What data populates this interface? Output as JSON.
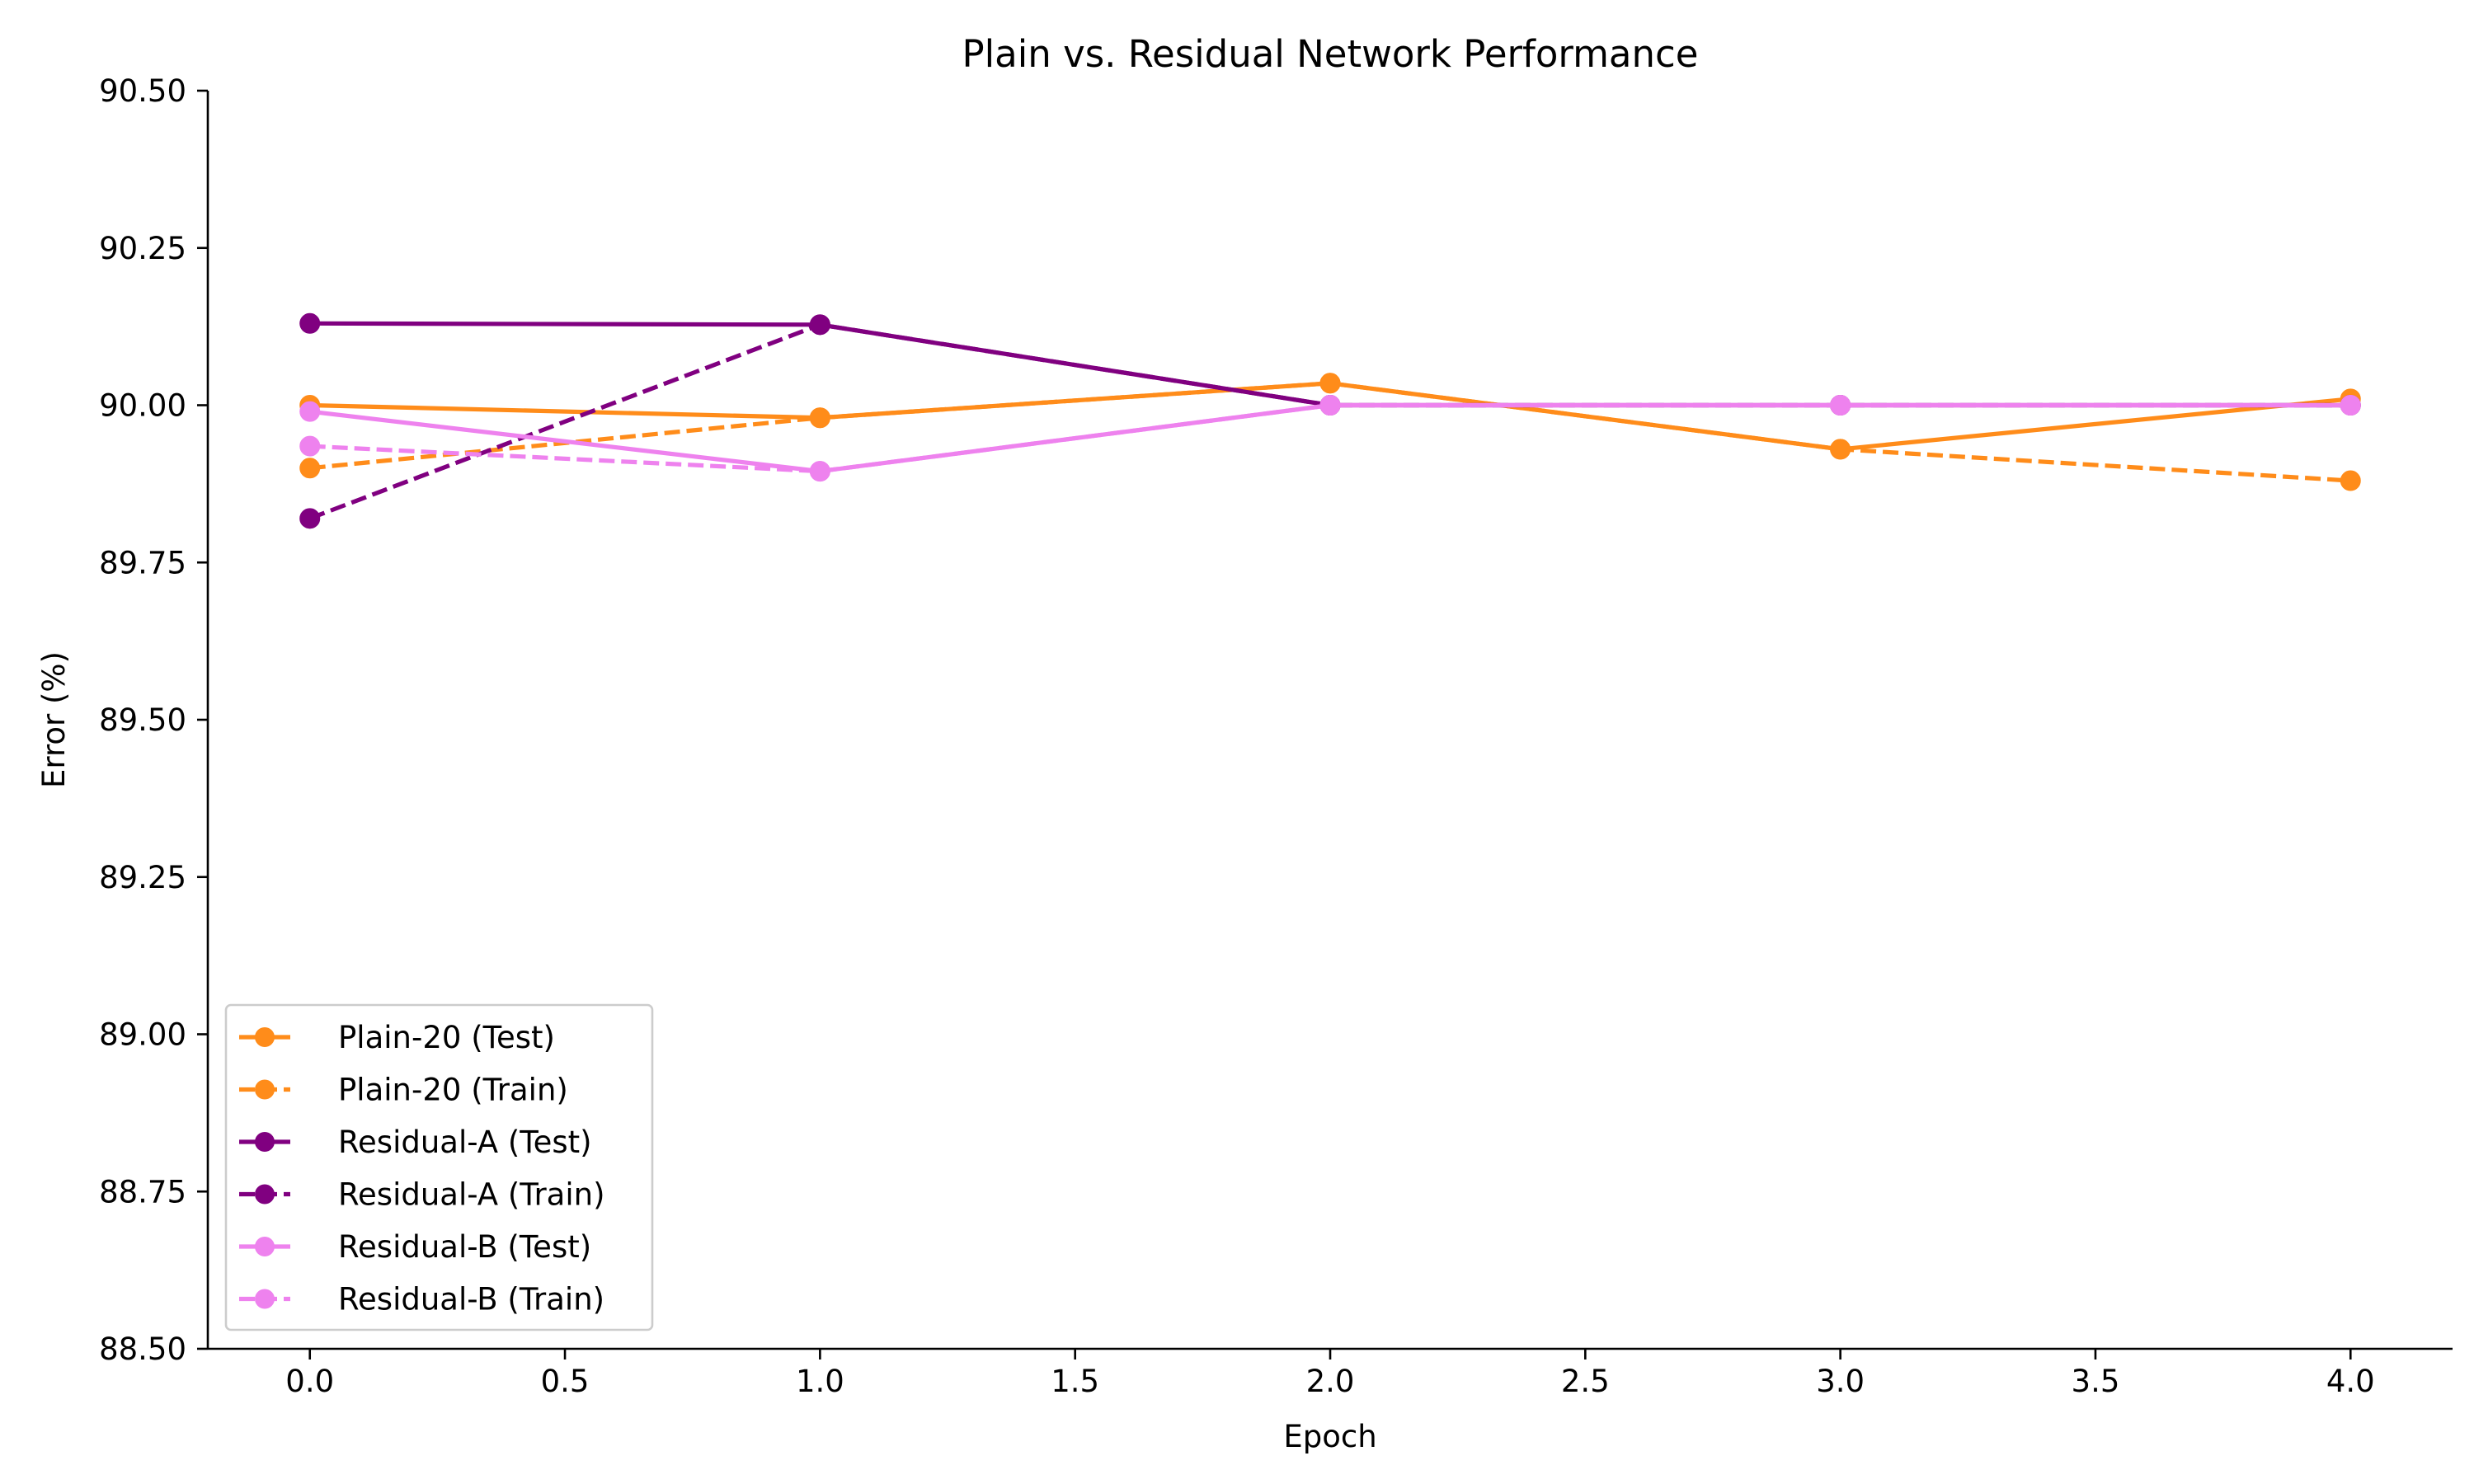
{
  "chart_data": {
    "type": "line",
    "title": "Plain vs. Residual Network Performance",
    "xlabel": "Epoch",
    "ylabel": "Error (%)",
    "xlim": [
      -0.2,
      4.2
    ],
    "ylim": [
      88.5,
      90.5
    ],
    "xticks": [
      0.0,
      0.5,
      1.0,
      1.5,
      2.0,
      2.5,
      3.0,
      3.5,
      4.0
    ],
    "xtick_labels": [
      "0.0",
      "0.5",
      "1.0",
      "1.5",
      "2.0",
      "2.5",
      "3.0",
      "3.5",
      "4.0"
    ],
    "yticks": [
      88.5,
      88.75,
      89.0,
      89.25,
      89.5,
      89.75,
      90.0,
      90.25,
      90.5
    ],
    "ytick_labels": [
      "88.50",
      "88.75",
      "89.00",
      "89.25",
      "89.50",
      "89.75",
      "90.00",
      "90.25",
      "90.50"
    ],
    "grid": false,
    "legend_position": "lower-left",
    "x": [
      0,
      1,
      2,
      3,
      4
    ],
    "series": [
      {
        "name": "Plain-20 (Test)",
        "color": "#ff8c1a",
        "line_style": "solid",
        "marker": "circle",
        "values": [
          90.0,
          89.98,
          90.035,
          89.93,
          90.01
        ]
      },
      {
        "name": "Plain-20 (Train)",
        "color": "#ff8c1a",
        "line_style": "dashed",
        "marker": "circle",
        "values": [
          89.9,
          89.98,
          90.035,
          89.93,
          89.88
        ]
      },
      {
        "name": "Residual-A (Test)",
        "color": "#800080",
        "line_style": "solid",
        "marker": "circle",
        "values": [
          90.13,
          90.128,
          90.0,
          90.0,
          90.0
        ]
      },
      {
        "name": "Residual-A (Train)",
        "color": "#800080",
        "line_style": "dashed",
        "marker": "circle",
        "values": [
          89.82,
          90.128,
          90.0,
          90.0,
          90.0
        ]
      },
      {
        "name": "Residual-B (Test)",
        "color": "#ee82ee",
        "line_style": "solid",
        "marker": "circle",
        "values": [
          89.99,
          89.895,
          90.0,
          90.0,
          90.0
        ]
      },
      {
        "name": "Residual-B (Train)",
        "color": "#ee82ee",
        "line_style": "dashed",
        "marker": "circle",
        "values": [
          89.935,
          89.895,
          90.0,
          90.0,
          90.0
        ]
      }
    ]
  }
}
